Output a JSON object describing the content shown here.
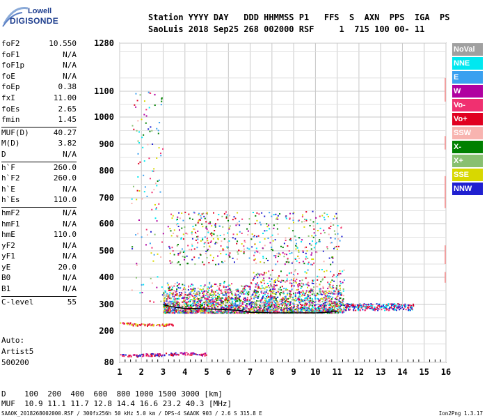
{
  "logo": {
    "line1": "Lowell",
    "line2": "DIGISONDE"
  },
  "header": {
    "row1": "Station YYYY DAY   DDD HHMMSS P1   FFS  S  AXN  PPS  IGA  PS",
    "row2": "SaoLuis 2018 Sep25 268 002000 RSF     1  715 100 00- 11"
  },
  "params": [
    {
      "name": "foF2",
      "value": "10.550"
    },
    {
      "name": "foF1",
      "value": "N/A"
    },
    {
      "name": "foF1p",
      "value": "N/A"
    },
    {
      "name": "foE",
      "value": "N/A"
    },
    {
      "name": "foEp",
      "value": "0.38"
    },
    {
      "name": "fxI",
      "value": "11.00"
    },
    {
      "name": "foEs",
      "value": "2.65"
    },
    {
      "name": "fmin",
      "value": "1.45"
    },
    {
      "name": "MUF(D)",
      "value": "40.27"
    },
    {
      "name": "M(D)",
      "value": "3.82"
    },
    {
      "name": "D",
      "value": "N/A"
    },
    {
      "name": "h`F",
      "value": "260.0"
    },
    {
      "name": "h`F2",
      "value": "260.0"
    },
    {
      "name": "h`E",
      "value": "N/A"
    },
    {
      "name": "h`Es",
      "value": "110.0"
    },
    {
      "name": "hmF2",
      "value": "N/A"
    },
    {
      "name": "hmF1",
      "value": "N/A"
    },
    {
      "name": "hmE",
      "value": "110.0"
    },
    {
      "name": "yF2",
      "value": "N/A"
    },
    {
      "name": "yF1",
      "value": "N/A"
    },
    {
      "name": "yE",
      "value": "20.0"
    },
    {
      "name": "B0",
      "value": "N/A"
    },
    {
      "name": "B1",
      "value": "N/A"
    },
    {
      "name": "C-level",
      "value": "55"
    }
  ],
  "auto": {
    "line1": "Auto:",
    "line2": "Artist5",
    "line3": "500200"
  },
  "bottom": {
    "row1": "D    100  200  400  600  800 1000 1500 3000 [km]",
    "row2": "MUF  10.9 11.1 11.7 12.8 14.4 16.6 23.2 40.3 [MHz]"
  },
  "footer": {
    "left": "SAAOK_2018268002000.RSF / 300fx256h 50 kHz 5.0 km / DPS-4 SAAOK 903 / 2.6 S 315.8 E",
    "right": "Ion2Png 1.3.17"
  },
  "legend": [
    {
      "label": "NoVal",
      "color": "#a0a0a0"
    },
    {
      "label": "NNE",
      "color": "#00e8f0"
    },
    {
      "label": "E",
      "color": "#3aa0f0"
    },
    {
      "label": "W",
      "color": "#b000a0"
    },
    {
      "label": "Vo-",
      "color": "#f03070"
    },
    {
      "label": "Vo+",
      "color": "#e00020"
    },
    {
      "label": "SSW",
      "color": "#f8b4b0"
    },
    {
      "label": "X-",
      "color": "#008000"
    },
    {
      "label": "X+",
      "color": "#88c070"
    },
    {
      "label": "SSE",
      "color": "#d8d800"
    },
    {
      "label": "NNW",
      "color": "#2020d0"
    }
  ],
  "chart_data": {
    "type": "scatter",
    "title": "",
    "xlabel": "",
    "ylabel": "",
    "xlim": [
      1,
      16
    ],
    "ylim": [
      80,
      1280
    ],
    "x_ticks": [
      "1",
      "2",
      "3",
      "4",
      "5",
      "6",
      "7",
      "8",
      "9",
      "10",
      "11",
      "12",
      "13",
      "14",
      "15",
      "16"
    ],
    "y_ticks": [
      "80",
      "200",
      "300",
      "400",
      "500",
      "600",
      "700",
      "800",
      "900",
      "1000",
      "1100",
      "1280"
    ],
    "y_scale": "nonlinear (ionogram virtual height)",
    "grid": true,
    "legend_position": "right",
    "series": [
      {
        "name": "F trace (h`F)",
        "values": [
          [
            3.0,
            300
          ],
          [
            3.2,
            295
          ],
          [
            3.5,
            290
          ],
          [
            4.0,
            285
          ],
          [
            4.5,
            285
          ],
          [
            5.0,
            283
          ],
          [
            5.5,
            282
          ],
          [
            6.0,
            280
          ],
          [
            6.5,
            278
          ],
          [
            7.0,
            270
          ],
          [
            7.5,
            270
          ],
          [
            8.0,
            268
          ],
          [
            9.0,
            268
          ],
          [
            10.0,
            268
          ],
          [
            10.5,
            270
          ],
          [
            11.0,
            275
          ]
        ]
      },
      {
        "name": "Es trace (h`Es)",
        "values": [
          [
            1.0,
            230
          ],
          [
            1.5,
            225
          ],
          [
            2.0,
            225
          ],
          [
            2.5,
            225
          ],
          [
            3.0,
            225
          ]
        ]
      },
      {
        "name": "Low Es trace",
        "values": [
          [
            1.0,
            108
          ],
          [
            1.5,
            108
          ],
          [
            2.0,
            110
          ],
          [
            2.5,
            110
          ],
          [
            3.0,
            112
          ],
          [
            3.5,
            115
          ],
          [
            4.0,
            115
          ],
          [
            4.5,
            112
          ]
        ]
      }
    ],
    "markers": [
      {
        "name": "foF2",
        "x": 10.55
      },
      {
        "name": "foEs",
        "x": 2.65
      }
    ]
  }
}
